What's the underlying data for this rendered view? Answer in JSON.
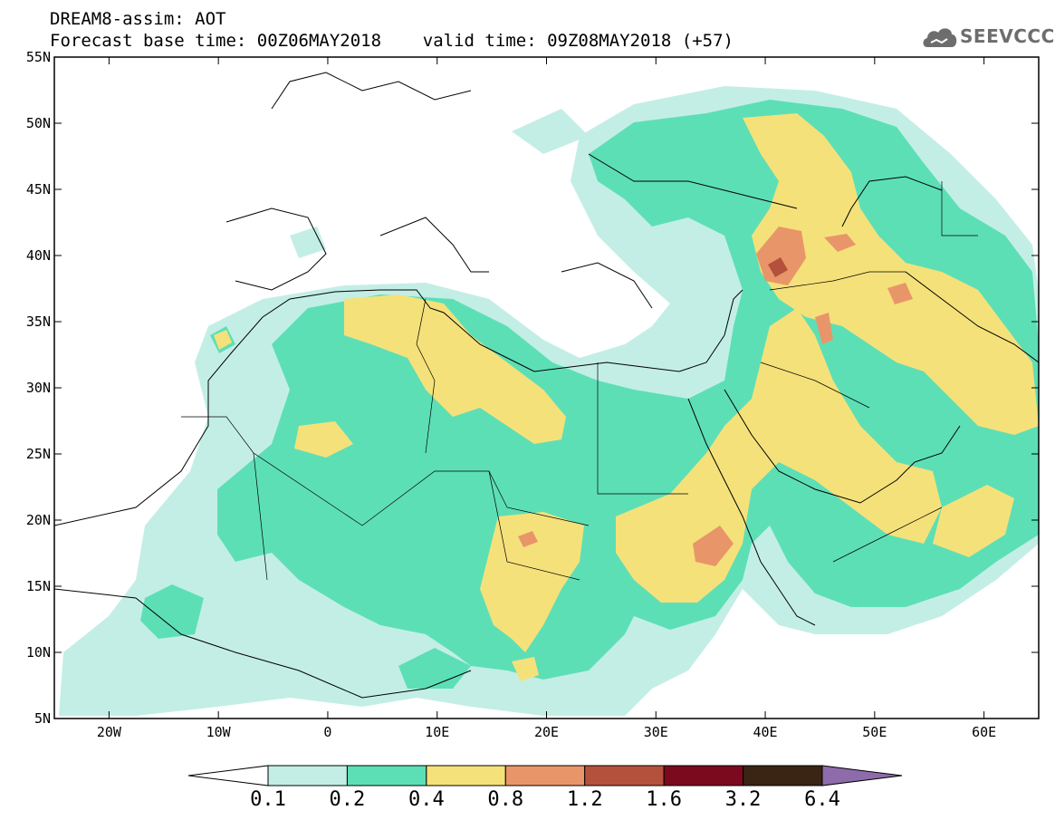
{
  "header": {
    "title_line1": "DREAM8-assim: AOT",
    "title_line2": "Forecast base time: 00Z06MAY2018    valid time: 09Z08MAY2018 (+57)"
  },
  "logo": {
    "text": "SEEVCCC",
    "icon": "cloud-logo-icon",
    "color": "#6d6d6d"
  },
  "map": {
    "lon_range": [
      -25,
      65
    ],
    "lat_range": [
      5,
      55
    ],
    "lat_ticks": [
      "55N",
      "50N",
      "45N",
      "40N",
      "35N",
      "30N",
      "25N",
      "20N",
      "15N",
      "10N",
      "5N"
    ],
    "lon_ticks": [
      "20W",
      "10W",
      "0",
      "10E",
      "20E",
      "30E",
      "40E",
      "50E",
      "60E"
    ],
    "field": "Aerosol optical thickness"
  },
  "colorbar": {
    "labels": [
      "0.1",
      "0.2",
      "0.4",
      "0.8",
      "1.2",
      "1.6",
      "3.2",
      "6.4"
    ],
    "colors": [
      "#ffffff",
      "#c3eee6",
      "#5ddfb6",
      "#f5e17a",
      "#e9956a",
      "#b4513c",
      "#7b0a1f",
      "#3a2414",
      "#8e6bab"
    ]
  }
}
